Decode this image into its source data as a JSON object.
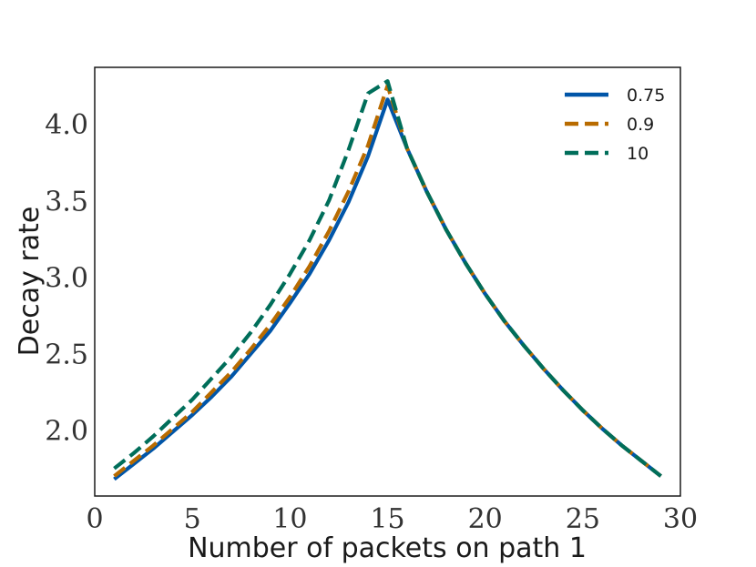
{
  "chart_data": {
    "type": "line",
    "title": "",
    "xlabel": "Number of packets on path 1",
    "ylabel": "Decay rate",
    "xlim": [
      0,
      30
    ],
    "ylim": [
      1.57,
      4.37
    ],
    "xticks": [
      0,
      5,
      10,
      15,
      20,
      25,
      30
    ],
    "xtick_labels": [
      "0",
      "5",
      "10",
      "15",
      "20",
      "25",
      "30"
    ],
    "yticks": [
      2.0,
      2.5,
      3.0,
      3.5,
      4.0
    ],
    "ytick_labels": [
      "2.0",
      "2.5",
      "3.0",
      "3.5",
      "4.0"
    ],
    "grid": false,
    "legend_position": "top-right",
    "x": [
      1,
      2,
      3,
      4,
      5,
      6,
      7,
      8,
      9,
      10,
      11,
      12,
      13,
      14,
      15,
      16,
      17,
      18,
      19,
      20,
      21,
      22,
      23,
      24,
      25,
      26,
      27,
      28,
      29
    ],
    "series": [
      {
        "name": "0.75",
        "color": "#0055a8",
        "style": "solid",
        "values": [
          1.68,
          1.78,
          1.88,
          1.99,
          2.1,
          2.22,
          2.35,
          2.5,
          2.65,
          2.83,
          3.02,
          3.24,
          3.49,
          3.79,
          4.16,
          3.84,
          3.56,
          3.31,
          3.09,
          2.89,
          2.71,
          2.55,
          2.4,
          2.26,
          2.13,
          2.01,
          1.9,
          1.8,
          1.7
        ]
      },
      {
        "name": "0.9",
        "color": "#b86b00",
        "style": "dashed",
        "values": [
          1.7,
          1.8,
          1.9,
          2.01,
          2.12,
          2.25,
          2.38,
          2.53,
          2.69,
          2.87,
          3.07,
          3.3,
          3.56,
          3.86,
          4.25,
          3.84,
          3.56,
          3.31,
          3.09,
          2.89,
          2.71,
          2.55,
          2.4,
          2.26,
          2.13,
          2.01,
          1.9,
          1.8,
          1.7
        ]
      },
      {
        "name": "10",
        "color": "#006e5a",
        "style": "dashed",
        "values": [
          1.75,
          1.85,
          1.96,
          2.08,
          2.2,
          2.34,
          2.48,
          2.64,
          2.82,
          3.02,
          3.24,
          3.5,
          3.83,
          4.2,
          4.28,
          3.84,
          3.56,
          3.31,
          3.09,
          2.89,
          2.71,
          2.55,
          2.4,
          2.26,
          2.13,
          2.01,
          1.9,
          1.8,
          1.7
        ]
      }
    ]
  }
}
